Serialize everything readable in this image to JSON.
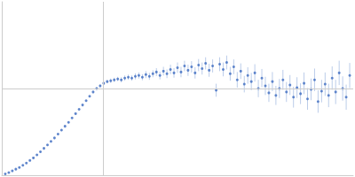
{
  "chart_data": {
    "type": "scatter",
    "x": [
      4,
      8,
      12,
      16,
      20,
      24,
      28,
      32,
      36,
      40,
      44,
      48,
      52,
      56,
      60,
      64,
      68,
      72,
      76,
      80,
      84,
      88,
      92,
      96,
      100,
      104,
      108,
      112,
      116,
      120,
      124,
      128,
      132,
      136,
      140,
      144,
      148,
      152,
      156,
      160,
      164,
      168,
      172,
      176,
      180,
      184,
      188,
      192,
      196,
      200,
      204,
      208,
      212,
      216,
      220,
      224,
      228,
      232,
      236,
      240,
      244,
      248,
      252,
      256,
      260,
      264,
      268,
      272,
      276,
      280,
      284,
      288,
      292,
      296,
      300,
      304,
      308,
      312,
      316,
      320,
      324,
      328,
      332,
      336,
      340,
      344,
      348,
      352,
      356,
      360,
      364,
      368,
      372,
      376,
      380,
      384,
      388,
      392,
      396
    ],
    "values": [
      1.5,
      3,
      5,
      7,
      9,
      11.5,
      14,
      17,
      20,
      23.5,
      27,
      31,
      35,
      39,
      43,
      47.5,
      52,
      56.5,
      61,
      66,
      71,
      76,
      81,
      86,
      91,
      96,
      100,
      103,
      106,
      108,
      109,
      110,
      111,
      110,
      112,
      113,
      112,
      114,
      115,
      113,
      116,
      114,
      117,
      119,
      115,
      120,
      117,
      122,
      118,
      124,
      119,
      126,
      121,
      125,
      118,
      127,
      123,
      129,
      121,
      126,
      98,
      128,
      122,
      130,
      117,
      125,
      110,
      120,
      105,
      115,
      108,
      118,
      100,
      112,
      103,
      95,
      108,
      92,
      100,
      110,
      96,
      104,
      90,
      101,
      94,
      106,
      88,
      99,
      110,
      85,
      97,
      105,
      92,
      112,
      96,
      118,
      100,
      90,
      115
    ],
    "errors": [
      0.5,
      0.5,
      0.5,
      0.5,
      0.5,
      0.5,
      0.5,
      0.5,
      0.5,
      0.5,
      0.5,
      0.5,
      0.5,
      0.5,
      0.5,
      0.5,
      0.5,
      0.5,
      0.5,
      0.5,
      0.5,
      0.5,
      0.5,
      0.5,
      0.5,
      1.5,
      1.5,
      2,
      2,
      2,
      2.5,
      2.5,
      2.5,
      3,
      3,
      3,
      3,
      3.5,
      3.5,
      3.5,
      4,
      4,
      4,
      4.5,
      4.5,
      5,
      5,
      5.5,
      5.5,
      6,
      6,
      6,
      6.5,
      6.5,
      6.5,
      7,
      7,
      7,
      7.5,
      7.5,
      7.5,
      8,
      8,
      8,
      8,
      8.5,
      9,
      9,
      9.5,
      9.5,
      10,
      10,
      10,
      10.5,
      10.5,
      10.5,
      11,
      11,
      11,
      11.5,
      11.5,
      11.5,
      12,
      12,
      12,
      12.5,
      12.5,
      12.5,
      13,
      13,
      13,
      13.5,
      13.5,
      13.5,
      14,
      14,
      14,
      14.5,
      14.5
    ],
    "color": "#3d6cc0",
    "xlim": [
      0,
      400
    ],
    "ylim": [
      0,
      200
    ],
    "xticks": [
      115
    ],
    "yticks": [
      100
    ],
    "grid": true,
    "tick_labels": false
  }
}
